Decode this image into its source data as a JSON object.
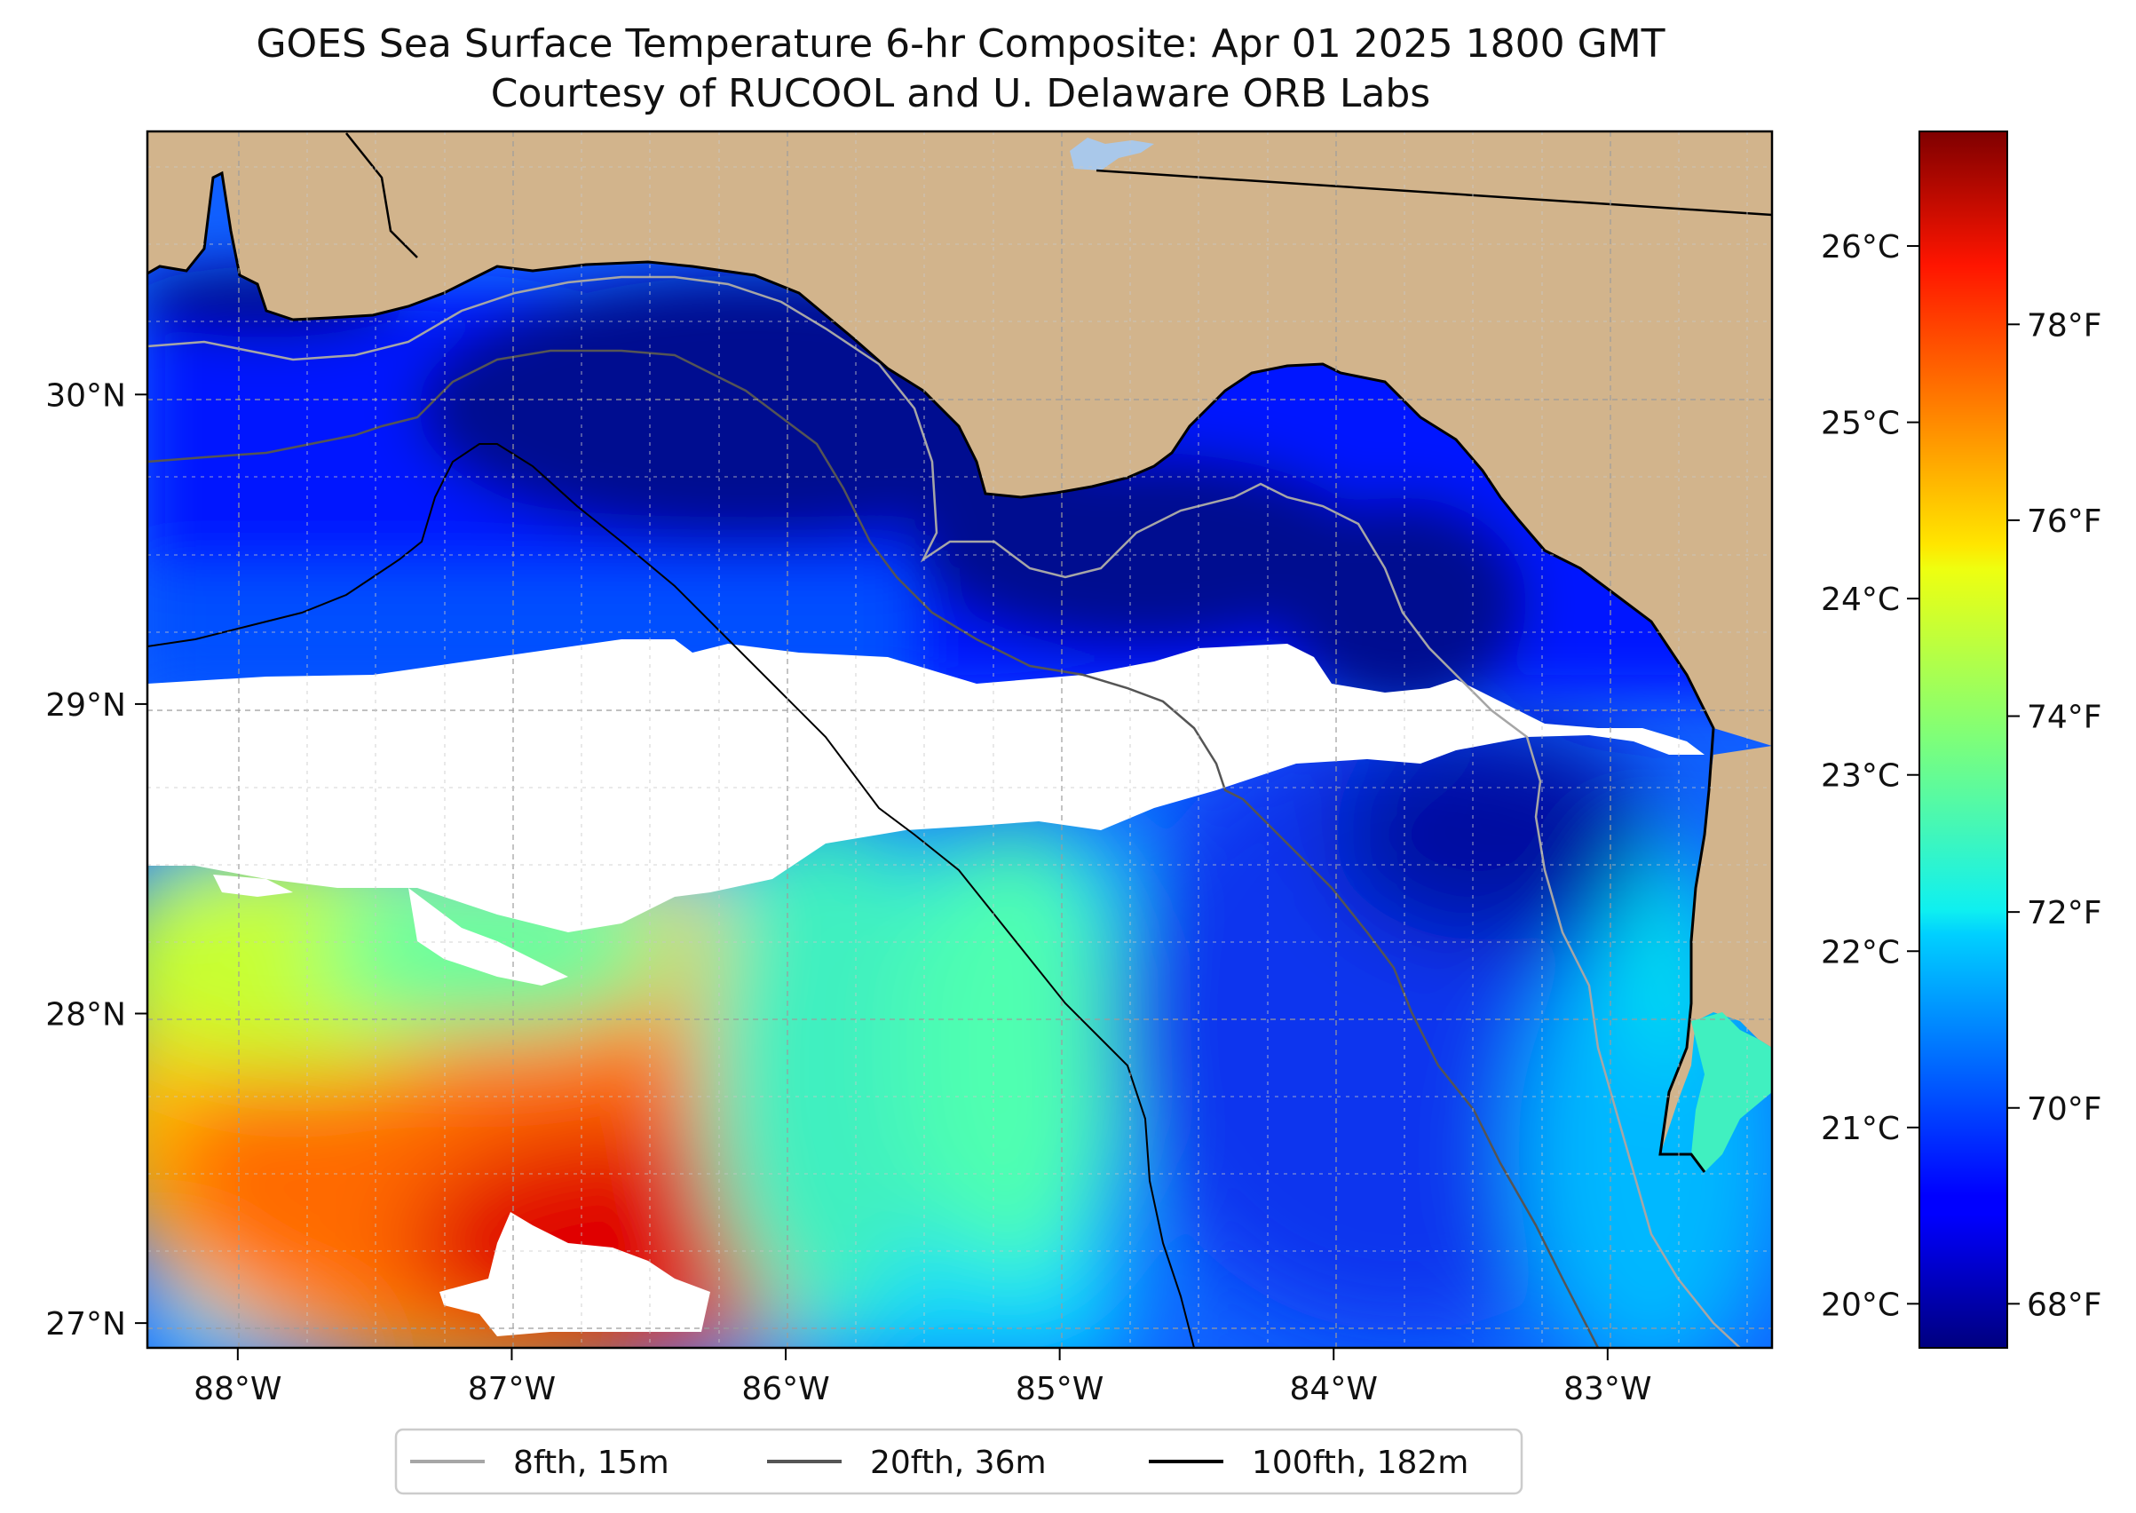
{
  "title": {
    "line1": "GOES Sea Surface Temperature 6-hr Composite: Apr 01 2025 1800 GMT",
    "line2": "Courtesy of RUCOOL and U. Delaware ORB Labs"
  },
  "map": {
    "lon_range": [
      -88.33,
      -82.4
    ],
    "lat_range": [
      26.92,
      30.85
    ],
    "lon_ticks": [
      {
        "value": -88,
        "label": "88°W"
      },
      {
        "value": -87,
        "label": "87°W"
      },
      {
        "value": -86,
        "label": "86°W"
      },
      {
        "value": -85,
        "label": "85°W"
      },
      {
        "value": -84,
        "label": "84°W"
      },
      {
        "value": -83,
        "label": "83°W"
      }
    ],
    "lat_ticks": [
      {
        "value": 27,
        "label": "27°N"
      },
      {
        "value": 28,
        "label": "28°N"
      },
      {
        "value": 29,
        "label": "29°N"
      },
      {
        "value": 30,
        "label": "30°N"
      }
    ],
    "colors": {
      "land": "#d2b48c",
      "no_data": "#ffffff",
      "coast": "#000000",
      "lake": "#a9c8ea"
    }
  },
  "colorbar": {
    "celsius_range": [
      19.75,
      26.65
    ],
    "celsius_ticks": [
      {
        "value": 20,
        "label": "20°C"
      },
      {
        "value": 21,
        "label": "21°C"
      },
      {
        "value": 22,
        "label": "22°C"
      },
      {
        "value": 23,
        "label": "23°C"
      },
      {
        "value": 24,
        "label": "24°C"
      },
      {
        "value": 25,
        "label": "25°C"
      },
      {
        "value": 26,
        "label": "26°C"
      }
    ],
    "fahrenheit_ticks": [
      {
        "value": 68,
        "label": "68°F"
      },
      {
        "value": 70,
        "label": "70°F"
      },
      {
        "value": 72,
        "label": "72°F"
      },
      {
        "value": 74,
        "label": "74°F"
      },
      {
        "value": 76,
        "label": "76°F"
      },
      {
        "value": 78,
        "label": "78°F"
      }
    ],
    "colormap": "jet"
  },
  "legend": {
    "items": [
      {
        "label": "8fth, 15m",
        "color": "#a6a6a6"
      },
      {
        "label": "20fth, 36m",
        "color": "#555555"
      },
      {
        "label": "100fth, 182m",
        "color": "#000000"
      }
    ]
  }
}
